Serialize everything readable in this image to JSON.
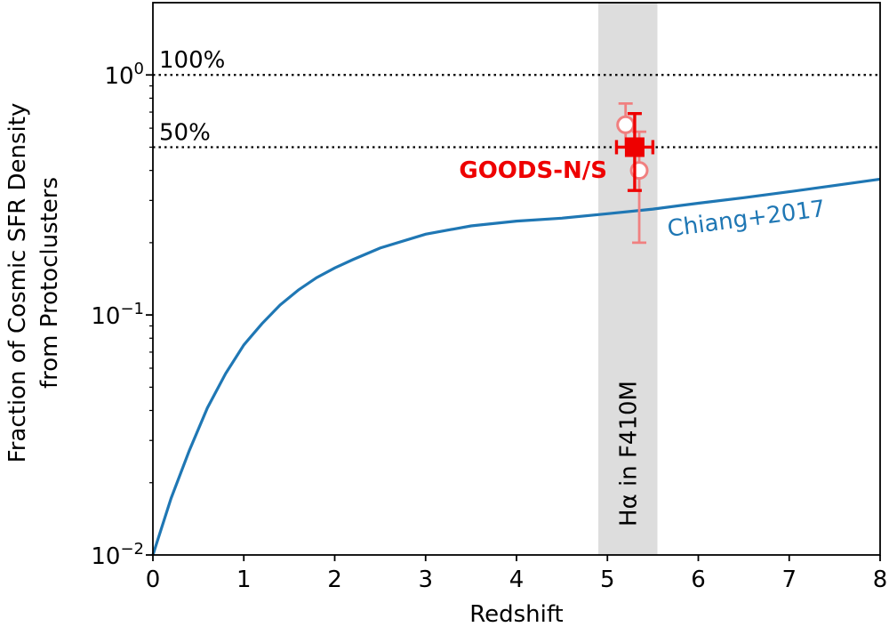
{
  "chart_data": {
    "type": "line",
    "xlabel": "Redshift",
    "ylabel": [
      "Fraction of Cosmic SFR Density",
      "from Protoclusters"
    ],
    "xlim": [
      0,
      8
    ],
    "ylim": [
      0.01,
      2.0
    ],
    "yscale": "log",
    "grid": false,
    "x_ticks": [
      {
        "value": 0,
        "label": "0"
      },
      {
        "value": 1,
        "label": "1"
      },
      {
        "value": 2,
        "label": "2"
      },
      {
        "value": 3,
        "label": "3"
      },
      {
        "value": 4,
        "label": "4"
      },
      {
        "value": 5,
        "label": "5"
      },
      {
        "value": 6,
        "label": "6"
      },
      {
        "value": 7,
        "label": "7"
      },
      {
        "value": 8,
        "label": "8"
      }
    ],
    "y_ticks": [
      {
        "value": 0.01,
        "base": "10",
        "exp": "−2"
      },
      {
        "value": 0.1,
        "base": "10",
        "exp": "−1"
      },
      {
        "value": 1,
        "base": "10",
        "exp": "0"
      }
    ],
    "reference_lines": [
      {
        "y": 1.0,
        "label": "100%"
      },
      {
        "y": 0.5,
        "label": "50%"
      }
    ],
    "band": {
      "xmin": 4.9,
      "xmax": 5.55,
      "label": "Hα in F410M",
      "color": "#dddddd"
    },
    "series": [
      {
        "name": "Chiang+2017",
        "color": "#1f77b4",
        "x": [
          0.0,
          0.2,
          0.4,
          0.6,
          0.8,
          1.0,
          1.2,
          1.4,
          1.6,
          1.8,
          2.0,
          2.2,
          2.5,
          3.0,
          3.5,
          4.0,
          4.5,
          5.0,
          5.5,
          6.0,
          6.5,
          7.0,
          7.5,
          8.0
        ],
        "y": [
          0.01,
          0.0172,
          0.0272,
          0.041,
          0.057,
          0.075,
          0.092,
          0.11,
          0.127,
          0.143,
          0.157,
          0.17,
          0.19,
          0.217,
          0.235,
          0.246,
          0.253,
          0.264,
          0.276,
          0.292,
          0.308,
          0.326,
          0.346,
          0.368
        ]
      }
    ],
    "points": [
      {
        "name": "GOODS-N/S",
        "marker": "square",
        "color": "#ee0000",
        "x": 5.3,
        "y": 0.5,
        "yerr_low": 0.33,
        "yerr_high": 0.69,
        "xerr_low": 5.1,
        "xerr_high": 5.5
      },
      {
        "name": "open-1",
        "marker": "open-circle",
        "color": "#f08080",
        "x": 5.2,
        "y": 0.62,
        "yerr_low": 0.5,
        "yerr_high": 0.76
      },
      {
        "name": "open-2",
        "marker": "open-circle",
        "color": "#f08080",
        "x": 5.35,
        "y": 0.4,
        "yerr_low": 0.2,
        "yerr_high": 0.58
      }
    ],
    "annotations": [
      {
        "text": "GOODS-N/S",
        "color": "#ee0000"
      },
      {
        "text": "Chiang+2017",
        "color": "#1f77b4"
      }
    ]
  }
}
